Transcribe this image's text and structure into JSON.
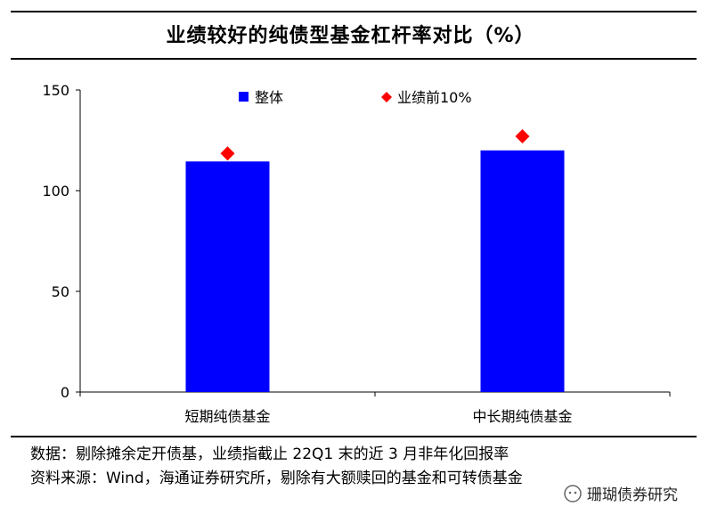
{
  "title": "业绩较好的纯债型基金杠杆率对比（%）",
  "chart_data": {
    "type": "bar",
    "title": "业绩较好的纯债型基金杠杆率对比（%）",
    "categories": [
      "短期纯债基金",
      "中长期纯债基金"
    ],
    "series": [
      {
        "name": "整体",
        "type": "bar",
        "color": "#0000ff",
        "values": [
          114.5,
          120
        ]
      },
      {
        "name": "业绩前10%",
        "type": "marker",
        "marker": "diamond",
        "color": "#ff0000",
        "values": [
          118.5,
          127
        ]
      }
    ],
    "y_ticks": [
      0,
      50,
      100,
      150
    ],
    "ylim": [
      0,
      150
    ],
    "grid": false,
    "legend": {
      "placement": "top-center"
    }
  },
  "notes": {
    "data_note": "数据：剔除摊余定开债基，业绩指截止 22Q1 末的近 3 月非年化回报率",
    "source": "资料来源：Wind，海通证券研究所，剔除有大额赎回的基金和可转债基金"
  },
  "watermark": {
    "text": "珊瑚债券研究",
    "icon": "wechat-icon"
  }
}
